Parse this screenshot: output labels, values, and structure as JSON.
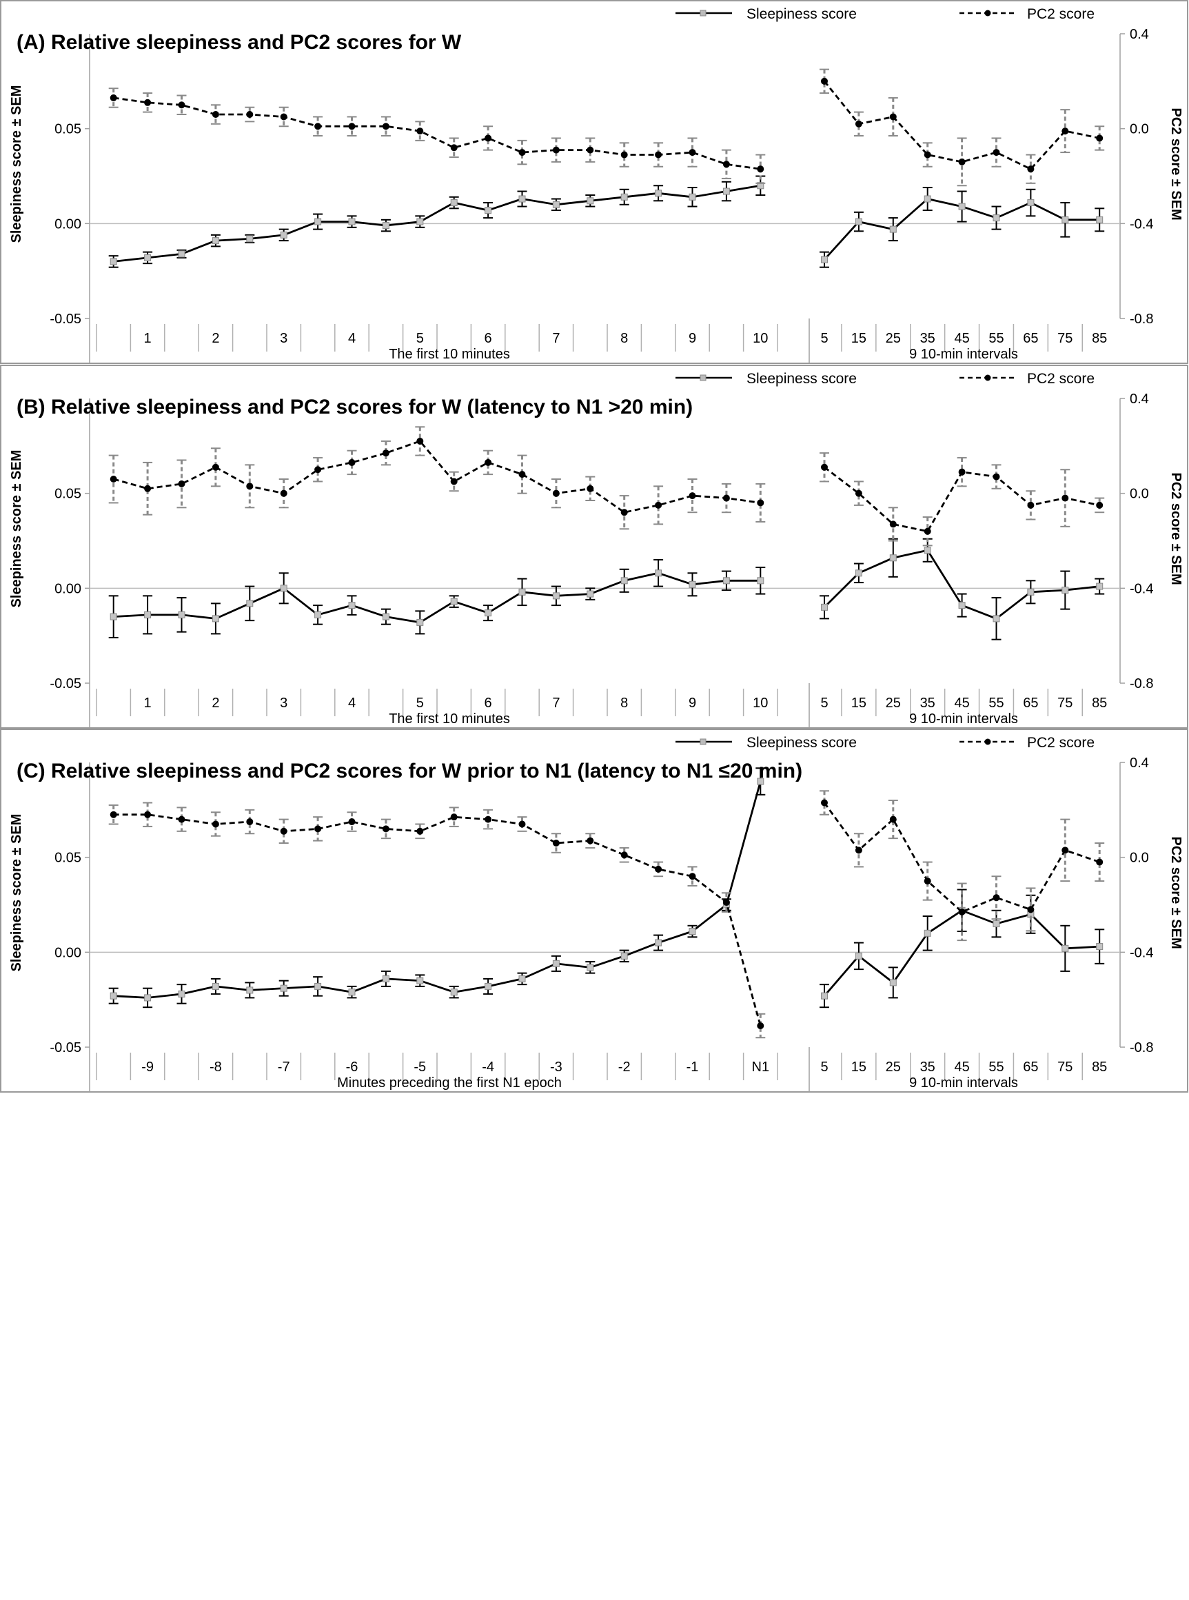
{
  "chart_data": [
    {
      "type": "line",
      "title": "(A) Relative sleepiness and PC2 scores for W",
      "ylabel_left": "Sleepiness score ± SEM",
      "ylabel_right": "PC2 score ± SEM",
      "ylim_left": [
        -0.05,
        0.1
      ],
      "ylim_right": [
        -0.8,
        0.4
      ],
      "yticks_left": [
        "0.05",
        "0.00",
        "-0.05"
      ],
      "yticks_right": [
        "0.4",
        "0.0",
        "-0.4",
        "-0.8"
      ],
      "legend_position": "top-right",
      "legend": [
        "Sleepiness score",
        "PC2 score"
      ],
      "sections": [
        {
          "label": "The first 10 minutes",
          "ticks": [
            "",
            "1",
            "",
            "2",
            "",
            "3",
            "",
            "4",
            "",
            "5",
            "",
            "6",
            "",
            "7",
            "",
            "8",
            "",
            "9",
            "",
            "10"
          ]
        },
        {
          "label": "9 10-min intervals",
          "ticks": [
            "5",
            "15",
            "25",
            "35",
            "45",
            "55",
            "65",
            "75",
            "85"
          ]
        }
      ],
      "series": [
        {
          "name": "Sleepiness score",
          "axis": "left",
          "style": "solid",
          "segments": [
            [
              -0.02,
              -0.018,
              -0.016,
              -0.009,
              -0.008,
              -0.006,
              0.001,
              0.001,
              -0.001,
              0.001,
              0.011,
              0.007,
              0.013,
              0.01,
              0.012,
              0.014,
              0.016,
              0.014,
              0.017,
              0.02
            ],
            [
              -0.019,
              0.001,
              -0.003,
              0.013,
              0.009,
              0.003,
              0.011,
              0.002,
              0.002
            ]
          ],
          "errors": [
            [
              0.003,
              0.003,
              0.002,
              0.003,
              0.002,
              0.003,
              0.004,
              0.003,
              0.003,
              0.003,
              0.003,
              0.004,
              0.004,
              0.003,
              0.003,
              0.004,
              0.004,
              0.005,
              0.005,
              0.005
            ],
            [
              0.004,
              0.005,
              0.006,
              0.006,
              0.008,
              0.006,
              0.007,
              0.009,
              0.006
            ]
          ]
        },
        {
          "name": "PC2 score",
          "axis": "right",
          "style": "dashed",
          "segments": [
            [
              0.13,
              0.11,
              0.1,
              0.06,
              0.06,
              0.05,
              0.01,
              0.01,
              0.01,
              -0.01,
              -0.08,
              -0.04,
              -0.1,
              -0.09,
              -0.09,
              -0.11,
              -0.11,
              -0.1,
              -0.15,
              -0.17
            ],
            [
              0.2,
              0.02,
              0.05,
              -0.11,
              -0.14,
              -0.1,
              -0.17,
              -0.01,
              -0.04
            ]
          ],
          "errors": [
            [
              0.04,
              0.04,
              0.04,
              0.04,
              0.03,
              0.04,
              0.04,
              0.04,
              0.04,
              0.04,
              0.04,
              0.05,
              0.05,
              0.05,
              0.05,
              0.05,
              0.05,
              0.06,
              0.06,
              0.06
            ],
            [
              0.05,
              0.05,
              0.08,
              0.05,
              0.1,
              0.06,
              0.06,
              0.09,
              0.05
            ]
          ]
        }
      ]
    },
    {
      "type": "line",
      "title": "(B) Relative sleepiness and PC2 scores for W (latency to N1 >20 min)",
      "ylabel_left": "Sleepiness score ± SEM",
      "ylabel_right": "PC2 score ± SEM",
      "ylim_left": [
        -0.05,
        0.1
      ],
      "ylim_right": [
        -0.8,
        0.4
      ],
      "yticks_left": [
        "0.05",
        "0.00",
        "-0.05"
      ],
      "yticks_right": [
        "0.4",
        "0.0",
        "-0.4",
        "-0.8"
      ],
      "legend_position": "top-right",
      "legend": [
        "Sleepiness score",
        "PC2 score"
      ],
      "sections": [
        {
          "label": "The first 10 minutes",
          "ticks": [
            "",
            "1",
            "",
            "2",
            "",
            "3",
            "",
            "4",
            "",
            "5",
            "",
            "6",
            "",
            "7",
            "",
            "8",
            "",
            "9",
            "",
            "10"
          ]
        },
        {
          "label": "9 10-min intervals",
          "ticks": [
            "5",
            "15",
            "25",
            "35",
            "45",
            "55",
            "65",
            "75",
            "85"
          ]
        }
      ],
      "series": [
        {
          "name": "Sleepiness score",
          "axis": "left",
          "style": "solid",
          "segments": [
            [
              -0.015,
              -0.014,
              -0.014,
              -0.016,
              -0.008,
              0.0,
              -0.014,
              -0.009,
              -0.015,
              -0.018,
              -0.007,
              -0.013,
              -0.002,
              -0.004,
              -0.003,
              0.004,
              0.008,
              0.002,
              0.004,
              0.004
            ],
            [
              -0.01,
              0.008,
              0.016,
              0.02,
              -0.009,
              -0.016,
              -0.002,
              -0.001,
              0.001
            ]
          ],
          "errors": [
            [
              0.011,
              0.01,
              0.009,
              0.008,
              0.009,
              0.008,
              0.005,
              0.005,
              0.004,
              0.006,
              0.003,
              0.004,
              0.007,
              0.005,
              0.003,
              0.006,
              0.007,
              0.006,
              0.005,
              0.007
            ],
            [
              0.006,
              0.005,
              0.01,
              0.006,
              0.006,
              0.011,
              0.006,
              0.01,
              0.004
            ]
          ]
        },
        {
          "name": "PC2 score",
          "axis": "right",
          "style": "dashed",
          "segments": [
            [
              0.06,
              0.02,
              0.04,
              0.11,
              0.03,
              0.0,
              0.1,
              0.13,
              0.17,
              0.22,
              0.05,
              0.13,
              0.08,
              0.0,
              0.02,
              -0.08,
              -0.05,
              -0.01,
              -0.02,
              -0.04
            ],
            [
              0.11,
              0.0,
              -0.13,
              -0.16,
              0.09,
              0.07,
              -0.05,
              -0.02,
              -0.05
            ]
          ],
          "errors": [
            [
              0.1,
              0.11,
              0.1,
              0.08,
              0.09,
              0.06,
              0.05,
              0.05,
              0.05,
              0.06,
              0.04,
              0.05,
              0.08,
              0.06,
              0.05,
              0.07,
              0.08,
              0.07,
              0.06,
              0.08
            ],
            [
              0.06,
              0.05,
              0.07,
              0.06,
              0.06,
              0.05,
              0.06,
              0.12,
              0.03
            ]
          ]
        }
      ]
    },
    {
      "type": "line",
      "title": "(C) Relative sleepiness and PC2 scores for W prior to N1 (latency to N1 ≤20 min)",
      "ylabel_left": "Sleepiness score ± SEM",
      "ylabel_right": "PC2 score ± SEM",
      "ylim_left": [
        -0.05,
        0.1
      ],
      "ylim_right": [
        -0.8,
        0.4
      ],
      "yticks_left": [
        "0.05",
        "0.00",
        "-0.05"
      ],
      "yticks_right": [
        "0.4",
        "0.0",
        "-0.4",
        "-0.8"
      ],
      "legend_position": "top-right",
      "legend": [
        "Sleepiness score",
        "PC2 score"
      ],
      "sections": [
        {
          "label": "Minutes preceding the first N1 epoch",
          "ticks": [
            "",
            "-9",
            "",
            "-8",
            "",
            "-7",
            "",
            "-6",
            "",
            "-5",
            "",
            "-4",
            "",
            "-3",
            "",
            "-2",
            "",
            "-1",
            "",
            "N1"
          ]
        },
        {
          "label": "9 10-min intervals",
          "ticks": [
            "5",
            "15",
            "25",
            "35",
            "45",
            "55",
            "65",
            "75",
            "85"
          ]
        }
      ],
      "series": [
        {
          "name": "Sleepiness score",
          "axis": "left",
          "style": "solid",
          "segments": [
            [
              -0.023,
              -0.024,
              -0.022,
              -0.018,
              -0.02,
              -0.019,
              -0.018,
              -0.021,
              -0.014,
              -0.015,
              -0.021,
              -0.018,
              -0.014,
              -0.006,
              -0.008,
              -0.002,
              0.005,
              0.011,
              0.025,
              0.09
            ],
            [
              -0.023,
              -0.002,
              -0.016,
              0.01,
              0.022,
              0.015,
              0.02,
              0.002,
              0.003
            ]
          ],
          "errors": [
            [
              0.004,
              0.005,
              0.005,
              0.004,
              0.004,
              0.004,
              0.005,
              0.003,
              0.004,
              0.003,
              0.003,
              0.004,
              0.003,
              0.004,
              0.003,
              0.003,
              0.004,
              0.003,
              0.003,
              0.007
            ],
            [
              0.006,
              0.007,
              0.008,
              0.009,
              0.011,
              0.007,
              0.01,
              0.012,
              0.009
            ]
          ]
        },
        {
          "name": "PC2 score",
          "axis": "right",
          "style": "dashed",
          "segments": [
            [
              0.18,
              0.18,
              0.16,
              0.14,
              0.15,
              0.11,
              0.12,
              0.15,
              0.12,
              0.11,
              0.17,
              0.16,
              0.14,
              0.06,
              0.07,
              0.01,
              -0.05,
              -0.08,
              -0.19,
              -0.71
            ],
            [
              0.23,
              0.03,
              0.16,
              -0.1,
              -0.23,
              -0.17,
              -0.22,
              0.03,
              -0.02
            ]
          ],
          "errors": [
            [
              0.04,
              0.05,
              0.05,
              0.05,
              0.05,
              0.05,
              0.05,
              0.04,
              0.04,
              0.03,
              0.04,
              0.04,
              0.03,
              0.04,
              0.03,
              0.03,
              0.03,
              0.04,
              0.04,
              0.05
            ],
            [
              0.05,
              0.07,
              0.08,
              0.08,
              0.12,
              0.09,
              0.09,
              0.13,
              0.08
            ]
          ]
        }
      ]
    }
  ]
}
